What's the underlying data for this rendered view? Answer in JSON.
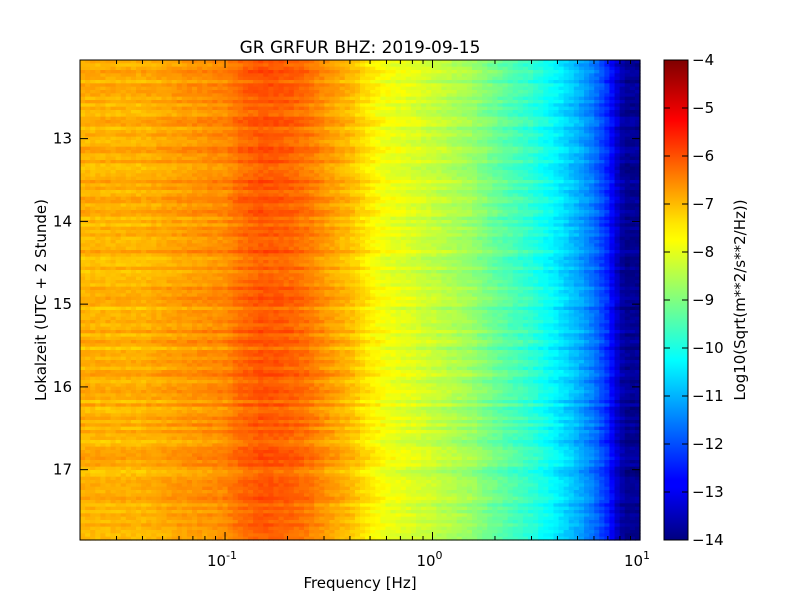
{
  "chart_data": {
    "type": "heatmap",
    "title": "GR GRFUR BHZ: 2019-09-15",
    "xlabel": "Frequency [Hz]",
    "ylabel": "Lokalzeit (UTC + 2 Stunde)",
    "x_scale": "log",
    "xlim": [
      0.02,
      10
    ],
    "ylim": [
      12.05,
      17.85
    ],
    "y_inverted": true,
    "x_ticks": [
      {
        "value": 0.1,
        "base": "10",
        "exp": "-1"
      },
      {
        "value": 1,
        "base": "10",
        "exp": "0"
      },
      {
        "value": 10,
        "base": "10",
        "exp": "1"
      }
    ],
    "y_ticks": [
      {
        "value": 13,
        "label": "13"
      },
      {
        "value": 14,
        "label": "14"
      },
      {
        "value": 15,
        "label": "15"
      },
      {
        "value": 16,
        "label": "16"
      },
      {
        "value": 17,
        "label": "17"
      }
    ],
    "frequency_profile": {
      "frequency_hz": [
        0.02,
        0.04,
        0.06,
        0.1,
        0.12,
        0.15,
        0.2,
        0.25,
        0.3,
        0.4,
        0.5,
        0.6,
        0.8,
        1.0,
        1.5,
        2.0,
        3.0,
        4.0,
        5.0,
        6.0,
        7.0,
        8.0,
        8.5,
        10.0
      ],
      "log10_amplitude": [
        -7.0,
        -7.0,
        -6.8,
        -6.6,
        -6.3,
        -6.1,
        -6.2,
        -6.4,
        -6.7,
        -7.1,
        -7.6,
        -7.9,
        -8.1,
        -8.3,
        -8.7,
        -9.2,
        -9.8,
        -10.4,
        -11.0,
        -11.6,
        -12.4,
        -13.5,
        -13.8,
        -13.8
      ]
    },
    "colorbar": {
      "label": "Log10(Sqrt(m**2/s**2/Hz))",
      "min": -14,
      "max": -4,
      "colormap": "jet",
      "ticks": [
        {
          "value": -4,
          "label": "−4"
        },
        {
          "value": -5,
          "label": "−5"
        },
        {
          "value": -6,
          "label": "−6"
        },
        {
          "value": -7,
          "label": "−7"
        },
        {
          "value": -8,
          "label": "−8"
        },
        {
          "value": -9,
          "label": "−9"
        },
        {
          "value": -10,
          "label": "−10"
        },
        {
          "value": -11,
          "label": "−11"
        },
        {
          "value": -12,
          "label": "−12"
        },
        {
          "value": -13,
          "label": "−13"
        },
        {
          "value": -14,
          "label": "−14"
        }
      ]
    }
  }
}
